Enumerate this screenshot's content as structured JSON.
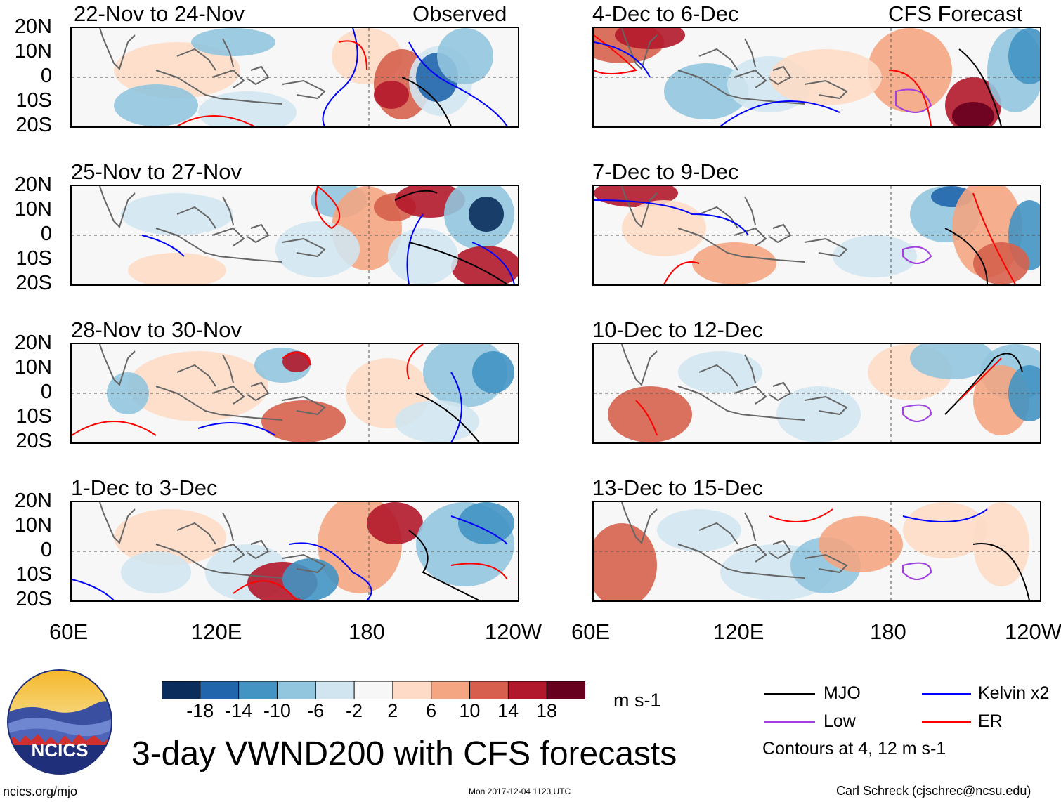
{
  "figure": {
    "title": "3-day VWND200 with CFS forecasts",
    "left_column_label": "Observed",
    "right_column_label": "CFS Forecast",
    "website": "ncics.org/mjo",
    "timestamp": "Mon 2017-12-04 1123 UTC",
    "author": "Carl Schreck (cjschrec@ncsu.edu)",
    "logo_text": "NCICS"
  },
  "latitude_ticks": [
    "20N",
    "10N",
    "0",
    "10S",
    "20S"
  ],
  "longitude_ticks": [
    "60E",
    "120E",
    "180",
    "120W"
  ],
  "panels": {
    "observed": [
      {
        "label": "22-Nov to 24-Nov"
      },
      {
        "label": "25-Nov to 27-Nov"
      },
      {
        "label": "28-Nov to 30-Nov"
      },
      {
        "label": "1-Dec to 3-Dec"
      }
    ],
    "forecast": [
      {
        "label": "4-Dec to 6-Dec"
      },
      {
        "label": "7-Dec to 9-Dec"
      },
      {
        "label": "10-Dec to 12-Dec"
      },
      {
        "label": "13-Dec to 15-Dec"
      }
    ]
  },
  "colorbar": {
    "units": "m s-1",
    "tick_labels": [
      "-18",
      "-14",
      "-10",
      "-6",
      "-2",
      "2",
      "6",
      "10",
      "14",
      "18"
    ],
    "colors": [
      "#0b2d5c",
      "#2166ac",
      "#4393c3",
      "#92c5de",
      "#d1e5f0",
      "#f7f7f7",
      "#fddbc7",
      "#f4a582",
      "#d6604d",
      "#b2182b",
      "#67001f"
    ]
  },
  "legend": {
    "items": [
      {
        "label": "MJO",
        "color": "#000000"
      },
      {
        "label": "Kelvin x2",
        "color": "#0000ff"
      },
      {
        "label": "Low",
        "color": "#a040e0"
      },
      {
        "label": "ER",
        "color": "#ff0000"
      }
    ],
    "contours_note": "Contours at 4, 12 m s-1"
  }
}
